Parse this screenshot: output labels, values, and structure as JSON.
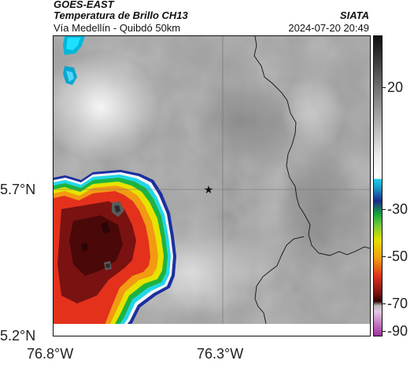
{
  "header": {
    "satellite": "GOES-EAST",
    "product": "Temperatura de Brillo CH13",
    "route": "Vía Medellín - Quibdó 50km",
    "organization": "SIATA",
    "datetime": "2024-07-20 20:49"
  },
  "axes": {
    "lat_ticks": [
      "5.7°N",
      "5.2°N"
    ],
    "lon_ticks": [
      "76.8°W",
      "76.3°W"
    ]
  },
  "colorbar": {
    "ticks": [
      "20",
      "-30",
      "-50",
      "-70",
      "-90"
    ]
  },
  "map": {
    "marker": "star-icon"
  }
}
